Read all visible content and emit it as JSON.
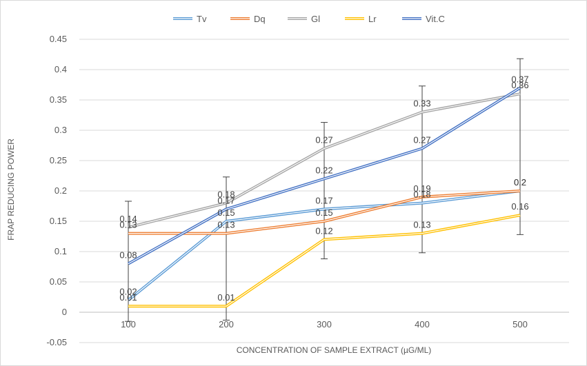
{
  "chart_data": {
    "type": "line",
    "title": "",
    "xlabel": "CONCENTRATION OF SAMPLE EXTRACT (µG/ML)",
    "ylabel": "FRAP REDUCING POWER",
    "ylim": [
      -0.05,
      0.45
    ],
    "y_ticks": [
      "-0.05",
      "0",
      "0.05",
      "0.1",
      "0.15",
      "0.2",
      "0.25",
      "0.3",
      "0.35",
      "0.4",
      "0.45"
    ],
    "categories": [
      "100",
      "200",
      "300",
      "400",
      "500"
    ],
    "grid": true,
    "legend_position": "top",
    "series": [
      {
        "name": "Tv",
        "color": "#5B9BD5",
        "values": [
          0.02,
          0.15,
          0.17,
          0.18,
          0.2
        ],
        "labels": [
          "0.02",
          "0.15",
          "0.17",
          "0.18",
          "0.2"
        ]
      },
      {
        "name": "Dq",
        "color": "#ED7D31",
        "values": [
          0.13,
          0.13,
          0.15,
          0.19,
          0.2
        ],
        "labels": [
          "0.13",
          "0.13",
          "0.15",
          "0.19",
          "0.2"
        ]
      },
      {
        "name": "Gl",
        "color": "#A5A5A5",
        "values": [
          0.14,
          0.18,
          0.27,
          0.33,
          0.36
        ],
        "labels": [
          "0.14",
          "0.18",
          "0.27",
          "0.33",
          "0.36"
        ]
      },
      {
        "name": "Lr",
        "color": "#FFC000",
        "values": [
          0.01,
          0.01,
          0.12,
          0.13,
          0.16
        ],
        "labels": [
          "0.01",
          "0.01",
          "0.12",
          "0.13",
          "0.16"
        ]
      },
      {
        "name": "Vit.C",
        "color": "#4472C4",
        "values": [
          0.08,
          0.17,
          0.22,
          0.27,
          0.37
        ],
        "labels": [
          "0.08",
          "0.17",
          "0.22",
          "0.27",
          "0.37"
        ]
      }
    ],
    "error_bars": [
      {
        "x": "100",
        "low": -0.015,
        "high": 0.183
      },
      {
        "x": "200",
        "low": -0.013,
        "high": 0.223
      },
      {
        "x": "300",
        "low": 0.088,
        "high": 0.313
      },
      {
        "x": "400",
        "low": 0.098,
        "high": 0.373
      },
      {
        "x": "500",
        "low": 0.128,
        "high": 0.418
      }
    ]
  }
}
